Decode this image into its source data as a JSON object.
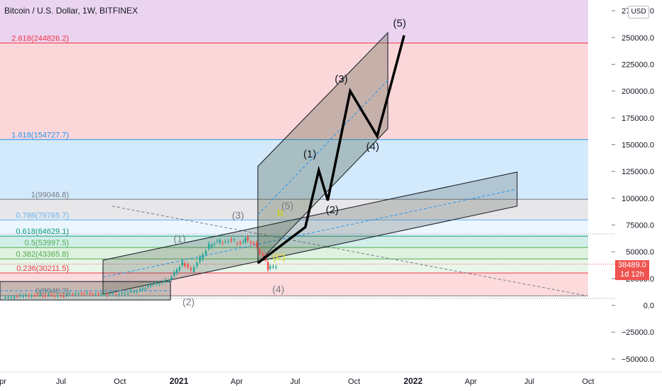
{
  "header": {
    "title": "Bitcoin / U.S. Dollar, 1W, BITFINEX",
    "currency_button": "USD"
  },
  "last_price": {
    "value": "38489.0",
    "countdown": "1d 12h",
    "color": "#ef5350"
  },
  "colors": {
    "up_candle": "#26a69a",
    "down_candle": "#ef5350",
    "wave_path": "#000000"
  },
  "chart_data": {
    "type": "line",
    "title": "Bitcoin / U.S. Dollar, 1W, BITFINEX",
    "xlabel": "",
    "ylabel": "",
    "x_tick_labels": [
      "pr",
      "Jul",
      "Oct",
      "2021",
      "Apr",
      "Jul",
      "Oct",
      "2022",
      "Apr",
      "Jul",
      "Oct"
    ],
    "y_tick_labels": [
      "275000.0",
      "250000.0",
      "225000.0",
      "200000.0",
      "175000.0",
      "150000.0",
      "125000.0",
      "100000.0",
      "75000.0",
      "50000.0",
      "25000.0",
      "0.0",
      "−25000.0",
      "−50000.0"
    ],
    "ylim": [
      -62000,
      285000
    ],
    "xlim": [
      "2020-03-28",
      "2022-11-12"
    ],
    "grid": false,
    "fib_levels": [
      {
        "label": "0(8948.2)",
        "value": 8948.2,
        "color": "#787b86",
        "band": "rgba(242,54,69,0.18)"
      },
      {
        "label": "0.236(30211.5)",
        "value": 30211.5,
        "color": "#f23645",
        "band": "rgba(129,199,132,0.18)"
      },
      {
        "label": "0.382(43365.8)",
        "value": 43365.8,
        "color": "#4caf50",
        "band": "rgba(76,175,80,0.18)"
      },
      {
        "label": "0.5(53997.5)",
        "value": 53997.5,
        "color": "#4caf50",
        "band": "rgba(8,153,129,0.18)"
      },
      {
        "label": "0.618(64629.1)",
        "value": 64629.1,
        "color": "#089981",
        "band": "rgba(100,181,246,0.12)"
      },
      {
        "label": "0.786(79765.7)",
        "value": 79765.7,
        "color": "#64b5f6",
        "band": "rgba(120,123,134,0.18)"
      },
      {
        "label": "1(99046.8)",
        "value": 99046.8,
        "color": "#787b86",
        "band": "rgba(33,150,243,0.2)"
      },
      {
        "label": "1.618(154727.7)",
        "value": 154727.7,
        "color": "#2196f3",
        "band": "rgba(242,54,69,0.2)"
      },
      {
        "label": "2.618(244826.2)",
        "value": 244826.2,
        "color": "#f23645",
        "band": "rgba(156,39,176,0.2)"
      }
    ],
    "price_series": {
      "name": "BTCUSD",
      "points": [
        [
          "2020-04-04",
          6800
        ],
        [
          "2020-05-02",
          8900
        ],
        [
          "2020-06-06",
          9500
        ],
        [
          "2020-07-04",
          9100
        ],
        [
          "2020-08-01",
          11500
        ],
        [
          "2020-09-05",
          10300
        ],
        [
          "2020-10-03",
          10600
        ],
        [
          "2020-10-31",
          13800
        ],
        [
          "2020-11-21",
          18700
        ],
        [
          "2020-12-19",
          23800
        ],
        [
          "2021-01-09",
          40000
        ],
        [
          "2021-01-23",
          32000
        ],
        [
          "2021-02-20",
          56000
        ],
        [
          "2021-03-13",
          61000
        ],
        [
          "2021-04-10",
          59000
        ],
        [
          "2021-04-17",
          63000
        ],
        [
          "2021-05-01",
          57000
        ],
        [
          "2021-05-15",
          46000
        ],
        [
          "2021-05-22",
          34000
        ],
        [
          "2021-06-05",
          37000
        ]
      ]
    },
    "wave_projection": {
      "points": [
        [
          "2021-07-17",
          73000
        ],
        [
          "2021-08-07",
          126000
        ],
        [
          "2021-08-21",
          98000
        ],
        [
          "2021-09-25",
          200000
        ],
        [
          "2021-11-06",
          158000
        ],
        [
          "2021-12-18",
          252000
        ]
      ]
    },
    "annotations": [
      {
        "text": "(5)",
        "x": "2021-12-11",
        "y": 260000
      },
      {
        "text": "(3)",
        "x": "2021-09-11",
        "y": 208000
      },
      {
        "text": "(1)",
        "x": "2021-07-24",
        "y": 138000
      },
      {
        "text": "(4)",
        "x": "2021-10-30",
        "y": 145000
      },
      {
        "text": "(2)",
        "x": "2021-08-28",
        "y": 86000
      },
      {
        "text": "(5)",
        "x": "2021-06-19",
        "y": 90000
      },
      {
        "text": "(3)",
        "x": "2021-04-03",
        "y": 81000
      },
      {
        "text": "(1)",
        "x": "2021-01-02",
        "y": 59000
      },
      {
        "text": "(2)",
        "x": "2021-01-16",
        "y": 0
      },
      {
        "text": "(4)",
        "x": "2021-06-05",
        "y": 12000
      }
    ]
  }
}
